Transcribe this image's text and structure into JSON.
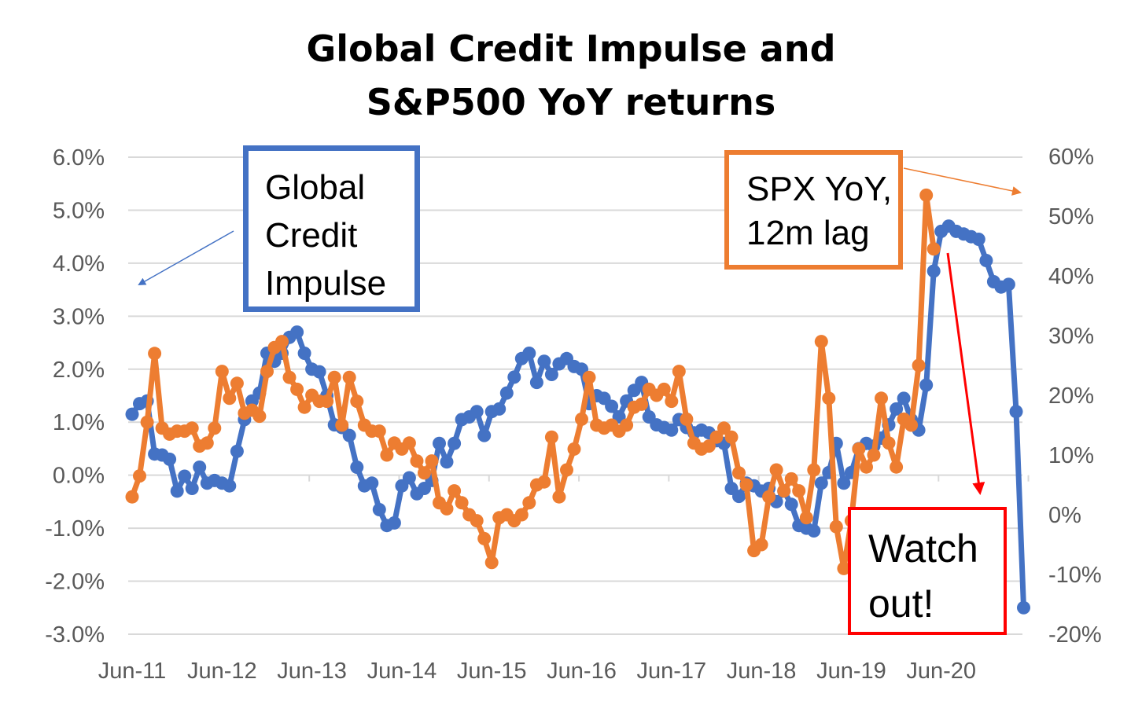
{
  "chart_data": {
    "type": "line",
    "title": [
      "Global Credit Impulse and",
      "S&P500 YoY returns"
    ],
    "x_tick_labels": [
      "Jun-11",
      "Jun-12",
      "Jun-13",
      "Jun-14",
      "Jun-15",
      "Jun-16",
      "Jun-17",
      "Jun-18",
      "Jun-19",
      "Jun-20"
    ],
    "x_range": [
      "Jun-11",
      "Mar-21"
    ],
    "y_left": {
      "ticks": [
        "6.0%",
        "5.0%",
        "4.0%",
        "3.0%",
        "2.0%",
        "1.0%",
        "0.0%",
        "-1.0%",
        "-2.0%",
        "-3.0%"
      ],
      "range": [
        -3.0,
        6.0
      ]
    },
    "y_right": {
      "ticks": [
        "60%",
        "50%",
        "40%",
        "30%",
        "20%",
        "10%",
        "0%",
        "-10%",
        "-20%"
      ],
      "range": [
        -20,
        60
      ]
    },
    "grid": true,
    "series": [
      {
        "name": "Global Credit Impulse",
        "axis": "left",
        "color": "#4472C4",
        "values": [
          1.15,
          1.35,
          1.4,
          0.4,
          0.38,
          0.3,
          -0.3,
          -0.02,
          -0.25,
          0.15,
          -0.15,
          -0.1,
          -0.15,
          -0.2,
          0.45,
          1.05,
          1.4,
          1.55,
          2.3,
          2.15,
          2.3,
          2.6,
          2.7,
          2.3,
          2.0,
          1.95,
          1.5,
          0.95,
          0.9,
          0.75,
          0.15,
          -0.2,
          -0.15,
          -0.65,
          -0.95,
          -0.9,
          -0.2,
          -0.05,
          -0.35,
          -0.25,
          -0.1,
          0.6,
          0.25,
          0.6,
          1.05,
          1.1,
          1.2,
          0.75,
          1.2,
          1.25,
          1.55,
          1.85,
          2.2,
          2.3,
          1.75,
          2.15,
          1.9,
          2.1,
          2.2,
          2.05,
          2.0,
          1.35,
          1.5,
          1.45,
          1.3,
          1.1,
          1.4,
          1.6,
          1.75,
          1.1,
          0.95,
          0.9,
          0.85,
          1.05,
          0.9,
          0.8,
          0.85,
          0.8,
          0.65,
          0.6,
          -0.25,
          -0.4,
          -0.15,
          -0.2,
          -0.3,
          -0.25,
          -0.5,
          -0.3,
          -0.55,
          -0.95,
          -1.0,
          -1.05,
          -0.15,
          0.05,
          0.6,
          -0.15,
          0.05,
          0.5,
          0.6,
          0.55,
          0.7,
          0.95,
          1.25,
          1.45,
          1.05,
          0.85,
          1.7,
          3.85,
          4.6,
          4.7,
          4.6,
          4.55,
          4.5,
          4.45,
          4.05,
          3.65,
          3.55,
          3.6,
          1.2,
          -2.5
        ]
      },
      {
        "name": "SPX YoY, 12m lag",
        "axis": "right",
        "color": "#ED7D31",
        "values": [
          3,
          6.5,
          15.5,
          27,
          14.5,
          13.5,
          14,
          14,
          14.5,
          11.5,
          12,
          14.5,
          24,
          19.5,
          22,
          17,
          17.5,
          16.5,
          24,
          28,
          29,
          23,
          21,
          18,
          20,
          19,
          19,
          23,
          15,
          23,
          19,
          15,
          14,
          14,
          10,
          12,
          11,
          12,
          9,
          7,
          9,
          2,
          1,
          4,
          2,
          0,
          -1,
          -4,
          -8,
          -0.5,
          0,
          -1,
          0,
          2,
          5,
          5.5,
          13,
          3,
          7.5,
          11,
          16,
          23,
          15,
          14.5,
          15,
          14,
          15,
          18,
          18.5,
          21,
          20,
          21,
          19,
          24,
          16,
          12,
          11,
          11.5,
          13,
          14.5,
          13,
          7,
          5,
          -6,
          -5,
          3,
          7.5,
          4,
          6,
          4,
          -0.5,
          7.5,
          29,
          19.5,
          -2,
          -9,
          -1,
          11,
          8,
          10,
          19.5,
          12,
          8,
          16,
          15,
          25,
          53.5,
          44.5
        ]
      }
    ],
    "annotations": [
      {
        "text": [
          "Global",
          "Credit",
          "Impulse"
        ],
        "color": "#4472C4"
      },
      {
        "text": [
          "SPX YoY,",
          "12m lag"
        ],
        "color": "#ED7D31"
      },
      {
        "text": [
          "Watch",
          "out!"
        ],
        "color": "#FF0000"
      }
    ]
  }
}
